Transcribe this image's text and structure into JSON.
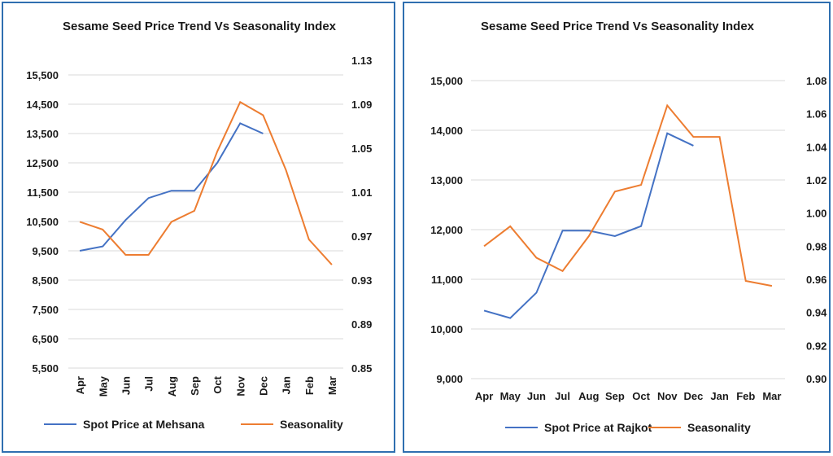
{
  "chart_data": [
    {
      "type": "line",
      "title": "Sesame Seed Price Trend Vs Seasonality Index",
      "categories": [
        "Apr",
        "May",
        "Jun",
        "Jul",
        "Aug",
        "Sep",
        "Oct",
        "Nov",
        "Dec",
        "Jan",
        "Feb",
        "Mar"
      ],
      "y_left": {
        "ticks": [
          "15,500",
          "14,500",
          "13,500",
          "12,500",
          "11,500",
          "10,500",
          "9,500",
          "8,500",
          "7,500",
          "6,500",
          "5,500"
        ],
        "min": 5500,
        "max": 16500
      },
      "y_right": {
        "ticks": [
          "1.13",
          "1.09",
          "1.05",
          "1.01",
          "0.97",
          "0.93",
          "0.89",
          "0.85"
        ],
        "min": 0.85,
        "max": 1.13
      },
      "grid": true,
      "legend_position": "bottom",
      "series": [
        {
          "name": "Spot Price at Mehsana",
          "axis": "left",
          "color": "#4472c4",
          "values": [
            9500,
            9650,
            10550,
            11300,
            11550,
            11550,
            12500,
            13850,
            13500,
            null,
            null,
            null
          ]
        },
        {
          "name": "Seasonality",
          "axis": "right",
          "color": "#ed7d31",
          "values": [
            0.983,
            0.976,
            0.953,
            0.953,
            0.983,
            0.993,
            1.047,
            1.092,
            1.08,
            1.03,
            0.967,
            0.944
          ]
        }
      ]
    },
    {
      "type": "line",
      "title": "Sesame Seed Price Trend  Vs Seasonality Index",
      "categories": [
        "Apr",
        "May",
        "Jun",
        "Jul",
        "Aug",
        "Sep",
        "Oct",
        "Nov",
        "Dec",
        "Jan",
        "Feb",
        "Mar"
      ],
      "y_left": {
        "ticks": [
          "15,000",
          "14,000",
          "13,000",
          "12,000",
          "11,000",
          "10,000",
          "9,000"
        ],
        "min": 9000,
        "max": 15000
      },
      "y_right": {
        "ticks": [
          "1.08",
          "1.06",
          "1.04",
          "1.02",
          "1.00",
          "0.98",
          "0.96",
          "0.94",
          "0.92",
          "0.90"
        ],
        "min": 0.9,
        "max": 1.08
      },
      "grid": true,
      "legend_position": "bottom",
      "series": [
        {
          "name": "Spot Price at Rajkot",
          "axis": "left",
          "color": "#4472c4",
          "values": [
            10370,
            10220,
            10730,
            11980,
            11980,
            11870,
            12070,
            13940,
            13690,
            null,
            null,
            null
          ]
        },
        {
          "name": "Seasonality",
          "axis": "right",
          "color": "#ed7d31",
          "values": [
            0.98,
            0.992,
            0.973,
            0.965,
            0.986,
            1.013,
            1.017,
            1.065,
            1.046,
            1.046,
            0.959,
            0.956
          ]
        }
      ]
    }
  ]
}
